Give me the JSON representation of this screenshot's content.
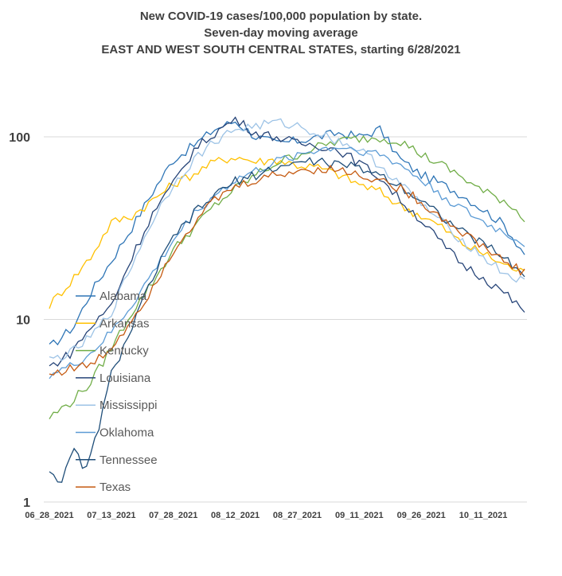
{
  "chart_data": {
    "type": "line",
    "title": [
      "New COVID-19 cases/100,000 population by state.",
      "Seven-day moving average",
      "EAST AND WEST SOUTH CENTRAL STATES, starting 6/28/2021"
    ],
    "y_scale": "log",
    "ylim": [
      1,
      100
    ],
    "y_ticks": [
      1,
      10,
      100
    ],
    "y_tick_labels": [
      "1",
      "10",
      "100"
    ],
    "x_tick_labels": [
      "06_28_2021",
      "07_13_2021",
      "07_28_2021",
      "08_12_2021",
      "08_27_2021",
      "09_11_2021",
      "09_26_2021",
      "10_11_2021"
    ],
    "x_tick_index": [
      0,
      15,
      30,
      45,
      60,
      75,
      90,
      105
    ],
    "n_days": 116,
    "grid": "horizontal",
    "legend_placement": "left-center",
    "series": [
      {
        "name": "Alabama",
        "color": "#2e75b6",
        "anchors": [
          [
            0,
            7
          ],
          [
            6,
            9.2
          ],
          [
            10,
            14
          ],
          [
            15,
            21
          ],
          [
            20,
            32
          ],
          [
            25,
            50
          ],
          [
            30,
            75
          ],
          [
            35,
            90
          ],
          [
            40,
            110
          ],
          [
            45,
            122
          ],
          [
            50,
            100
          ],
          [
            55,
            92
          ],
          [
            60,
            95
          ],
          [
            65,
            100
          ],
          [
            70,
            105
          ],
          [
            75,
            100
          ],
          [
            80,
            110
          ],
          [
            85,
            75
          ],
          [
            90,
            62
          ],
          [
            95,
            55
          ],
          [
            100,
            48
          ],
          [
            105,
            40
          ],
          [
            110,
            33
          ],
          [
            115,
            23
          ]
        ]
      },
      {
        "name": "Arkansas",
        "color": "#ffc000",
        "anchors": [
          [
            0,
            12
          ],
          [
            5,
            16
          ],
          [
            10,
            22
          ],
          [
            15,
            34
          ],
          [
            20,
            37
          ],
          [
            25,
            45
          ],
          [
            30,
            55
          ],
          [
            35,
            63
          ],
          [
            40,
            73
          ],
          [
            45,
            78
          ],
          [
            50,
            73
          ],
          [
            55,
            75
          ],
          [
            60,
            70
          ],
          [
            65,
            68
          ],
          [
            70,
            62
          ],
          [
            75,
            55
          ],
          [
            80,
            50
          ],
          [
            85,
            42
          ],
          [
            90,
            37
          ],
          [
            95,
            32
          ],
          [
            100,
            26
          ],
          [
            105,
            23
          ],
          [
            110,
            20
          ],
          [
            115,
            18
          ]
        ]
      },
      {
        "name": "Kentucky",
        "color": "#70ad47",
        "anchors": [
          [
            0,
            2.9
          ],
          [
            5,
            3.5
          ],
          [
            10,
            4.5
          ],
          [
            15,
            7
          ],
          [
            20,
            11
          ],
          [
            25,
            16
          ],
          [
            30,
            24
          ],
          [
            35,
            32
          ],
          [
            40,
            42
          ],
          [
            45,
            52
          ],
          [
            50,
            62
          ],
          [
            55,
            72
          ],
          [
            60,
            80
          ],
          [
            65,
            88
          ],
          [
            70,
            95
          ],
          [
            75,
            98
          ],
          [
            80,
            99
          ],
          [
            85,
            95
          ],
          [
            90,
            80
          ],
          [
            95,
            70
          ],
          [
            100,
            60
          ],
          [
            105,
            50
          ],
          [
            110,
            45
          ],
          [
            115,
            36
          ]
        ]
      },
      {
        "name": "Louisiana",
        "color": "#264478",
        "anchors": [
          [
            0,
            5.5
          ],
          [
            5,
            6.5
          ],
          [
            10,
            9
          ],
          [
            15,
            12
          ],
          [
            20,
            22
          ],
          [
            25,
            38
          ],
          [
            30,
            55
          ],
          [
            35,
            85
          ],
          [
            40,
            105
          ],
          [
            45,
            125
          ],
          [
            50,
            105
          ],
          [
            55,
            100
          ],
          [
            60,
            92
          ],
          [
            65,
            90
          ],
          [
            70,
            85
          ],
          [
            75,
            72
          ],
          [
            80,
            60
          ],
          [
            85,
            45
          ],
          [
            90,
            35
          ],
          [
            95,
            26
          ],
          [
            100,
            20
          ],
          [
            105,
            17
          ],
          [
            110,
            14
          ],
          [
            115,
            11
          ]
        ]
      },
      {
        "name": "Mississippi",
        "color": "#9dc3e6",
        "anchors": [
          [
            0,
            6
          ],
          [
            5,
            6.5
          ],
          [
            10,
            8
          ],
          [
            15,
            11
          ],
          [
            20,
            20
          ],
          [
            25,
            35
          ],
          [
            30,
            55
          ],
          [
            35,
            75
          ],
          [
            40,
            95
          ],
          [
            45,
            110
          ],
          [
            50,
            115
          ],
          [
            55,
            120
          ],
          [
            60,
            115
          ],
          [
            65,
            105
          ],
          [
            70,
            95
          ],
          [
            75,
            85
          ],
          [
            80,
            70
          ],
          [
            85,
            55
          ],
          [
            90,
            43
          ],
          [
            95,
            34
          ],
          [
            100,
            27
          ],
          [
            105,
            22
          ],
          [
            110,
            18
          ],
          [
            115,
            16
          ]
        ]
      },
      {
        "name": "Oklahoma",
        "color": "#5b9bd5",
        "anchors": [
          [
            0,
            5
          ],
          [
            5,
            5.5
          ],
          [
            10,
            6.5
          ],
          [
            15,
            8.5
          ],
          [
            20,
            12
          ],
          [
            25,
            18
          ],
          [
            30,
            27
          ],
          [
            35,
            38
          ],
          [
            40,
            48
          ],
          [
            45,
            58
          ],
          [
            50,
            65
          ],
          [
            55,
            73
          ],
          [
            60,
            80
          ],
          [
            65,
            85
          ],
          [
            70,
            88
          ],
          [
            75,
            85
          ],
          [
            80,
            80
          ],
          [
            85,
            70
          ],
          [
            90,
            58
          ],
          [
            95,
            48
          ],
          [
            100,
            40
          ],
          [
            105,
            34
          ],
          [
            110,
            30
          ],
          [
            115,
            26
          ]
        ]
      },
      {
        "name": "Tennessee",
        "color": "#1f4e79",
        "anchors": [
          [
            0,
            1.5
          ],
          [
            3,
            1.3
          ],
          [
            6,
            1.9
          ],
          [
            9,
            1.5
          ],
          [
            12,
            2.6
          ],
          [
            15,
            5
          ],
          [
            20,
            9
          ],
          [
            25,
            17
          ],
          [
            30,
            28
          ],
          [
            35,
            38
          ],
          [
            40,
            48
          ],
          [
            45,
            57
          ],
          [
            50,
            62
          ],
          [
            55,
            68
          ],
          [
            60,
            72
          ],
          [
            65,
            74
          ],
          [
            70,
            70
          ],
          [
            75,
            68
          ],
          [
            80,
            62
          ],
          [
            85,
            54
          ],
          [
            90,
            45
          ],
          [
            95,
            37
          ],
          [
            100,
            30
          ],
          [
            105,
            26
          ],
          [
            110,
            22
          ],
          [
            115,
            17
          ]
        ]
      },
      {
        "name": "Texas",
        "color": "#c55a11",
        "anchors": [
          [
            0,
            5
          ],
          [
            5,
            5.4
          ],
          [
            10,
            5.6
          ],
          [
            15,
            7
          ],
          [
            20,
            10
          ],
          [
            25,
            15
          ],
          [
            30,
            24
          ],
          [
            35,
            34
          ],
          [
            40,
            45
          ],
          [
            45,
            53
          ],
          [
            50,
            58
          ],
          [
            55,
            62
          ],
          [
            60,
            65
          ],
          [
            65,
            67
          ],
          [
            70,
            66
          ],
          [
            75,
            62
          ],
          [
            80,
            58
          ],
          [
            85,
            52
          ],
          [
            90,
            44
          ],
          [
            95,
            36
          ],
          [
            100,
            30
          ],
          [
            105,
            25
          ],
          [
            110,
            21
          ],
          [
            115,
            18
          ]
        ]
      }
    ]
  }
}
